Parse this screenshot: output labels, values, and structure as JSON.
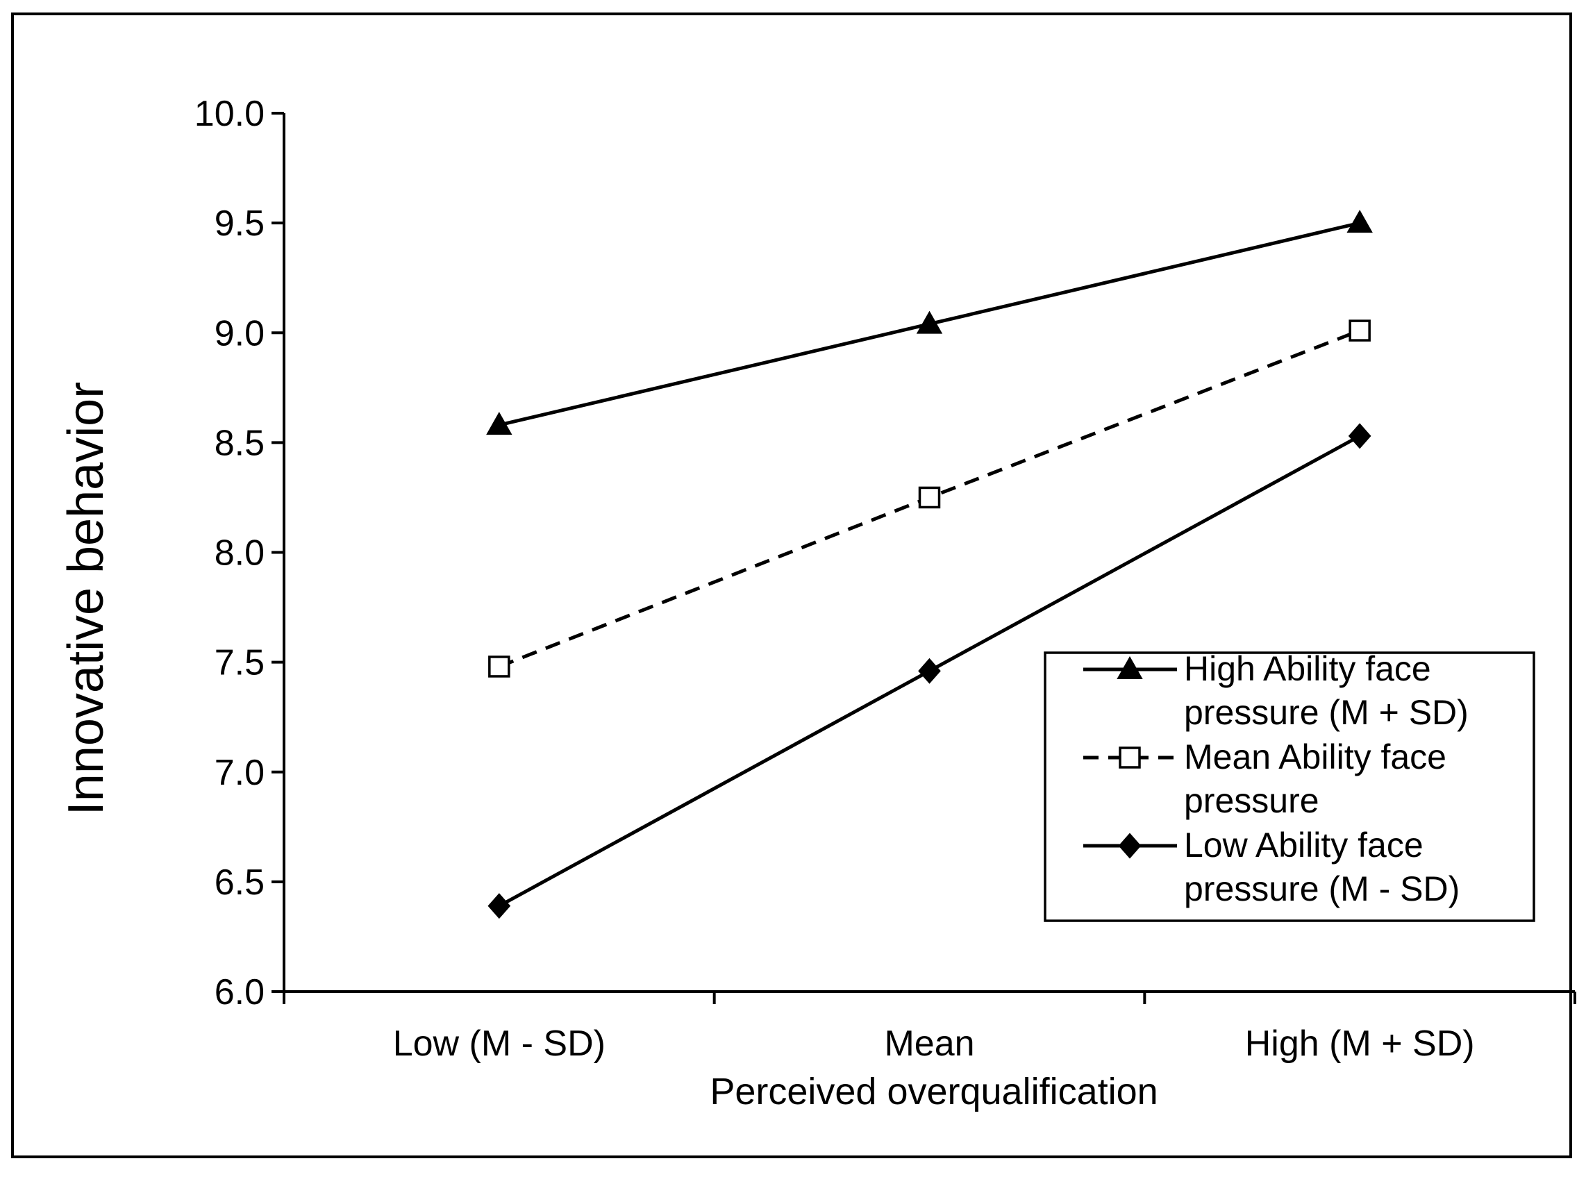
{
  "chart_data": {
    "type": "line",
    "title": "",
    "xlabel": "Perceived overqualification",
    "ylabel": "Innovative behavior",
    "categories": [
      "Low (M - SD)",
      "Mean",
      "High (M + SD)"
    ],
    "ylim": [
      6.0,
      10.0
    ],
    "yticks": [
      "6.0",
      "6.5",
      "7.0",
      "7.5",
      "8.0",
      "8.5",
      "9.0",
      "9.5",
      "10.0"
    ],
    "legend_position": "bottom-right",
    "series": [
      {
        "name": "High Ability face pressure (M + SD)",
        "legend_lines": [
          "High Ability face",
          "pressure (M + SD)"
        ],
        "values": [
          8.58,
          9.04,
          9.5
        ],
        "marker": "triangle",
        "line": "solid",
        "color": "#000000"
      },
      {
        "name": "Mean Ability face pressure",
        "legend_lines": [
          "Mean Ability face",
          "pressure"
        ],
        "values": [
          7.48,
          8.25,
          9.01
        ],
        "marker": "square-open",
        "line": "dashed",
        "color": "#000000"
      },
      {
        "name": "Low Ability face pressure (M - SD)",
        "legend_lines": [
          "Low Ability face",
          "pressure (M - SD)"
        ],
        "values": [
          6.39,
          7.46,
          8.53
        ],
        "marker": "diamond",
        "line": "solid",
        "color": "#000000"
      }
    ]
  }
}
